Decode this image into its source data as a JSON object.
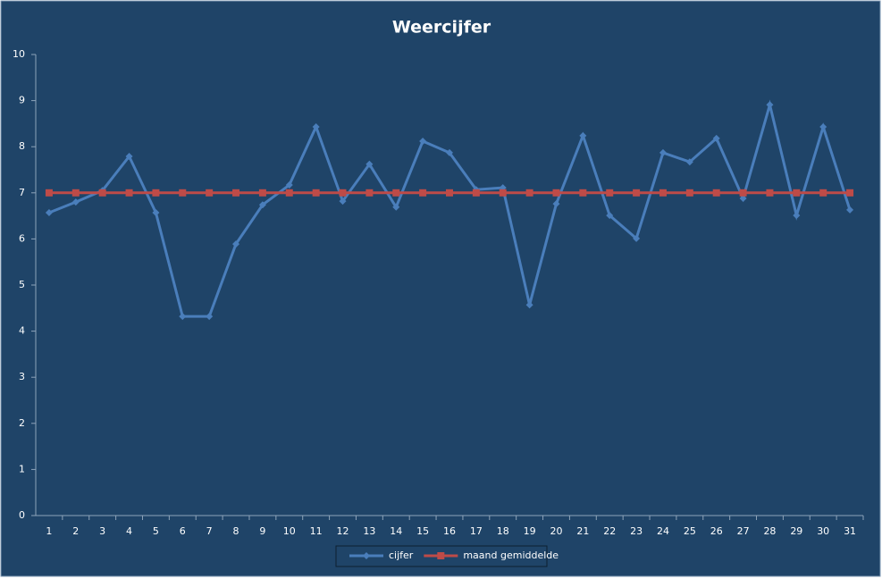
{
  "chart_data": {
    "type": "line",
    "title": "Weercijfer",
    "categories": [
      "1",
      "2",
      "3",
      "4",
      "5",
      "6",
      "7",
      "8",
      "9",
      "10",
      "11",
      "12",
      "13",
      "14",
      "15",
      "16",
      "17",
      "18",
      "19",
      "20",
      "21",
      "22",
      "23",
      "24",
      "25",
      "26",
      "27",
      "28",
      "29",
      "30",
      "31"
    ],
    "series": [
      {
        "name": "cijfer",
        "color": "#4a7ebb",
        "marker": "diamond",
        "values": [
          6.57,
          6.8,
          7.05,
          7.79,
          6.57,
          4.32,
          4.32,
          5.89,
          6.74,
          7.17,
          8.43,
          6.82,
          7.62,
          6.69,
          8.12,
          7.87,
          7.07,
          7.11,
          4.57,
          6.76,
          8.24,
          6.51,
          6.01,
          7.87,
          7.67,
          8.18,
          6.88,
          8.91,
          6.51,
          8.43,
          6.63
        ]
      },
      {
        "name": "maand gemiddelde",
        "color": "#be4b48",
        "marker": "square",
        "values": [
          7,
          7,
          7,
          7,
          7,
          7,
          7,
          7,
          7,
          7,
          7,
          7,
          7,
          7,
          7,
          7,
          7,
          7,
          7,
          7,
          7,
          7,
          7,
          7,
          7,
          7,
          7,
          7,
          7,
          7,
          7
        ]
      }
    ],
    "ylim": [
      0,
      10
    ],
    "yticks": [
      0,
      1,
      2,
      3,
      4,
      5,
      6,
      7,
      8,
      9,
      10
    ],
    "grid": false,
    "legend": "bottom"
  }
}
